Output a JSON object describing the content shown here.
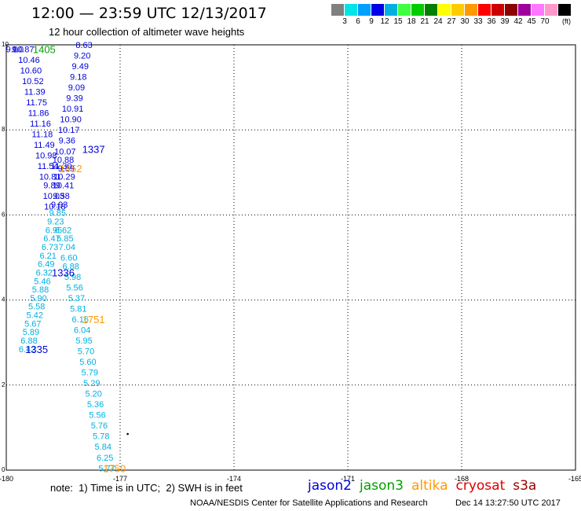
{
  "header": {
    "title": "12:00 — 23:59 UTC 12/13/2017",
    "subtitle": "12 hour collection of altimeter wave heights"
  },
  "color_scale": {
    "colors": [
      "#808080",
      "#00e5e5",
      "#00a0ff",
      "#0000e6",
      "#00b0e0",
      "#40ff40",
      "#00cc00",
      "#008000",
      "#ffff00",
      "#ffcc00",
      "#ff9900",
      "#ff0000",
      "#cc0000",
      "#8b0000",
      "#a000a0",
      "#ff77ff",
      "#ff99cc",
      "#000000"
    ],
    "labels": [
      "3",
      "6",
      "9",
      "12",
      "15",
      "18",
      "21",
      "24",
      "27",
      "30",
      "33",
      "36",
      "39",
      "42",
      "45",
      "70"
    ],
    "unit": "(ft)"
  },
  "footer": {
    "note": "note:  1) Time is in UTC;  2) SWH is in feet",
    "satellites": [
      {
        "name": "jason2",
        "color": "#0000dd"
      },
      {
        "name": "jason3",
        "color": "#00a000"
      },
      {
        "name": "altika",
        "color": "#ff9900"
      },
      {
        "name": "cryosat",
        "color": "#dd0000"
      },
      {
        "name": "s3a",
        "color": "#990000"
      }
    ],
    "credit": "NOAA/NESDIS Center for Satellite Applications and Research",
    "timestamp": "Dec 14 13:27:50 UTC 2017"
  },
  "chart_data": {
    "type": "scatter",
    "xlim": [
      -180,
      -165
    ],
    "ylim": [
      0,
      10
    ],
    "x_ticks": [
      "-180",
      "-177",
      "-174",
      "-171",
      "-168",
      "-165"
    ],
    "y_ticks": [
      "0",
      "2",
      "4",
      "6",
      "8",
      "10"
    ],
    "grid": true,
    "series": [
      {
        "name": "jason2",
        "color": "#0000dd",
        "points": [
          {
            "x": -179.85,
            "y": 9.9,
            "label": "9.0"
          },
          {
            "x": -179.7,
            "y": 9.9,
            "label": "9.0"
          },
          {
            "x": -179.55,
            "y": 9.9,
            "label": "10.87"
          },
          {
            "x": -179.4,
            "y": 9.65,
            "label": "10.46"
          },
          {
            "x": -179.35,
            "y": 9.4,
            "label": "10.60"
          },
          {
            "x": -179.3,
            "y": 9.15,
            "label": "10.52"
          },
          {
            "x": -179.25,
            "y": 8.9,
            "label": "11.39"
          },
          {
            "x": -179.2,
            "y": 8.65,
            "label": "11.75"
          },
          {
            "x": -179.15,
            "y": 8.4,
            "label": "11.86"
          },
          {
            "x": -179.1,
            "y": 8.15,
            "label": "11.16"
          },
          {
            "x": -179.05,
            "y": 7.9,
            "label": "11.18"
          },
          {
            "x": -179.0,
            "y": 7.65,
            "label": "11.49"
          },
          {
            "x": -178.95,
            "y": 7.4,
            "label": "10.98"
          },
          {
            "x": -178.9,
            "y": 7.15,
            "label": "11.54"
          },
          {
            "x": -178.55,
            "y": 7.15,
            "label": "11.30"
          },
          {
            "x": -178.85,
            "y": 6.9,
            "label": "10.81"
          },
          {
            "x": -178.8,
            "y": 6.7,
            "label": "9.89"
          },
          {
            "x": -178.75,
            "y": 6.45,
            "label": "10.03"
          },
          {
            "x": -178.72,
            "y": 6.2,
            "label": "10.18"
          },
          {
            "x": -177.95,
            "y": 10.0,
            "label": "8.63"
          },
          {
            "x": -178.0,
            "y": 9.75,
            "label": "9.20"
          },
          {
            "x": -178.05,
            "y": 9.5,
            "label": "9.49"
          },
          {
            "x": -178.1,
            "y": 9.25,
            "label": "9.18"
          },
          {
            "x": -178.15,
            "y": 9.0,
            "label": "9.09"
          },
          {
            "x": -178.2,
            "y": 8.75,
            "label": "9.39"
          },
          {
            "x": -178.25,
            "y": 8.5,
            "label": "10.91"
          },
          {
            "x": -178.3,
            "y": 8.25,
            "label": "10.90"
          },
          {
            "x": -178.35,
            "y": 8.0,
            "label": "10.17"
          },
          {
            "x": -178.4,
            "y": 7.75,
            "label": "9.36"
          },
          {
            "x": -178.45,
            "y": 7.5,
            "label": "10.07"
          },
          {
            "x": -178.5,
            "y": 7.3,
            "label": "10.88"
          },
          {
            "x": -178.42,
            "y": 7.1,
            "label": "9.89"
          },
          {
            "x": -178.47,
            "y": 6.9,
            "label": "10.29"
          },
          {
            "x": -178.5,
            "y": 6.7,
            "label": "10.41"
          },
          {
            "x": -178.55,
            "y": 6.45,
            "label": "9.58"
          },
          {
            "x": -178.6,
            "y": 6.25,
            "label": "9.93"
          }
        ]
      },
      {
        "name": "jason3",
        "color": "#00a000",
        "points": []
      },
      {
        "name": "altika",
        "color": "#ff9900",
        "points": []
      },
      {
        "name": "cryosat",
        "color": "#dd0000",
        "points": []
      },
      {
        "name": "s3a",
        "color": "#990000",
        "points": []
      },
      {
        "name": "light-blue-track",
        "color": "#00b0e0",
        "points": [
          {
            "x": -178.65,
            "y": 6.05,
            "label": "9.85"
          },
          {
            "x": -178.7,
            "y": 5.85,
            "label": "9.23"
          },
          {
            "x": -178.75,
            "y": 5.65,
            "label": "6.95"
          },
          {
            "x": -178.8,
            "y": 5.45,
            "label": "6.47"
          },
          {
            "x": -178.85,
            "y": 5.25,
            "label": "6.73"
          },
          {
            "x": -178.9,
            "y": 5.05,
            "label": "6.21"
          },
          {
            "x": -178.95,
            "y": 4.85,
            "label": "6.49"
          },
          {
            "x": -179.0,
            "y": 4.65,
            "label": "6.32"
          },
          {
            "x": -179.05,
            "y": 4.45,
            "label": "5.46"
          },
          {
            "x": -179.1,
            "y": 4.25,
            "label": "5.88"
          },
          {
            "x": -179.15,
            "y": 4.05,
            "label": "5.90"
          },
          {
            "x": -179.2,
            "y": 3.85,
            "label": "5.58"
          },
          {
            "x": -179.25,
            "y": 3.65,
            "label": "5.42"
          },
          {
            "x": -179.3,
            "y": 3.45,
            "label": "5.67"
          },
          {
            "x": -179.35,
            "y": 3.25,
            "label": "5.89"
          },
          {
            "x": -179.4,
            "y": 3.05,
            "label": "6.88"
          },
          {
            "x": -179.45,
            "y": 2.85,
            "label": "6.42"
          },
          {
            "x": -178.5,
            "y": 5.65,
            "label": "6.62"
          },
          {
            "x": -178.45,
            "y": 5.45,
            "label": "5.85"
          },
          {
            "x": -178.4,
            "y": 5.25,
            "label": "7.04"
          },
          {
            "x": -178.35,
            "y": 5.0,
            "label": "6.60"
          },
          {
            "x": -178.3,
            "y": 4.8,
            "label": "6.88"
          },
          {
            "x": -178.25,
            "y": 4.55,
            "label": "5.98"
          },
          {
            "x": -178.2,
            "y": 4.3,
            "label": "5.56"
          },
          {
            "x": -178.15,
            "y": 4.05,
            "label": "5.37"
          },
          {
            "x": -178.1,
            "y": 3.8,
            "label": "5.81"
          },
          {
            "x": -178.05,
            "y": 3.55,
            "label": "6.16"
          },
          {
            "x": -178.0,
            "y": 3.3,
            "label": "6.04"
          },
          {
            "x": -177.95,
            "y": 3.05,
            "label": "5.95"
          },
          {
            "x": -177.9,
            "y": 2.8,
            "label": "5.70"
          },
          {
            "x": -177.85,
            "y": 2.55,
            "label": "5.60"
          },
          {
            "x": -177.8,
            "y": 2.3,
            "label": "5.79"
          },
          {
            "x": -177.75,
            "y": 2.05,
            "label": "5.29"
          },
          {
            "x": -177.7,
            "y": 1.8,
            "label": "5.20"
          },
          {
            "x": -177.65,
            "y": 1.55,
            "label": "5.36"
          },
          {
            "x": -177.6,
            "y": 1.3,
            "label": "5.56"
          },
          {
            "x": -177.55,
            "y": 1.05,
            "label": "5.76"
          },
          {
            "x": -177.5,
            "y": 0.8,
            "label": "5.78"
          },
          {
            "x": -177.45,
            "y": 0.55,
            "label": "5.84"
          },
          {
            "x": -177.4,
            "y": 0.3,
            "label": "6.25"
          },
          {
            "x": -177.35,
            "y": 0.05,
            "label": "5.77"
          }
        ]
      }
    ],
    "time_labels": [
      {
        "x": -179.0,
        "y": 9.9,
        "label": "1405",
        "color": "#00a000"
      },
      {
        "x": -177.7,
        "y": 7.55,
        "label": "1337",
        "color": "#0000dd"
      },
      {
        "x": -178.3,
        "y": 7.1,
        "label": "1452",
        "color": "#ff9900"
      },
      {
        "x": -178.5,
        "y": 4.65,
        "label": "1336",
        "color": "#0000dd"
      },
      {
        "x": -177.7,
        "y": 3.55,
        "label": "1751",
        "color": "#ff9900"
      },
      {
        "x": -179.2,
        "y": 2.85,
        "label": "1335",
        "color": "#0000dd"
      },
      {
        "x": -177.15,
        "y": 0.05,
        "label": "1750",
        "color": "#ff9900"
      }
    ],
    "markers": [
      {
        "x": -176.8,
        "y": 0.85
      }
    ]
  }
}
